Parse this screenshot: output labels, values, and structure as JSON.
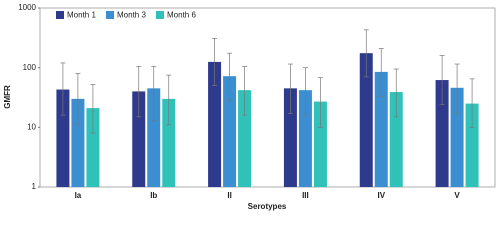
{
  "chart_data": {
    "type": "bar",
    "x_label": "Serotypes",
    "y_label": "GMFR",
    "categories": [
      "Ia",
      "Ib",
      "II",
      "III",
      "IV",
      "V"
    ],
    "series": [
      {
        "name": "Month 1",
        "color": "#2e3a8c",
        "values": [
          43,
          40,
          125,
          45,
          175,
          62
        ],
        "upper": [
          120,
          105,
          310,
          115,
          430,
          160
        ],
        "lower": [
          16,
          15,
          50,
          17,
          70,
          24
        ]
      },
      {
        "name": "Month 3",
        "color": "#3b8fd0",
        "values": [
          30,
          45,
          72,
          42,
          85,
          46
        ],
        "upper": [
          80,
          105,
          175,
          100,
          210,
          115
        ],
        "lower": [
          11,
          13,
          28,
          16,
          33,
          17
        ]
      },
      {
        "name": "Month 6",
        "color": "#30c2b8",
        "values": [
          21,
          30,
          42,
          27,
          39,
          25
        ],
        "upper": [
          52,
          75,
          105,
          68,
          95,
          65
        ],
        "lower": [
          8,
          11,
          16,
          10,
          15,
          10
        ]
      }
    ],
    "log_scale": true,
    "ylim": [
      1,
      1000
    ],
    "yticks": [
      1,
      10,
      100,
      1000
    ],
    "legend": "top-left"
  }
}
